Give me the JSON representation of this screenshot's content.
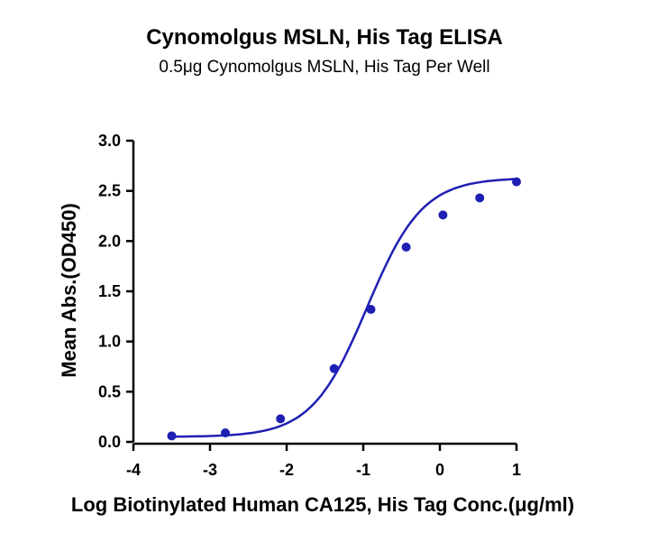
{
  "chart_data": {
    "type": "scatter",
    "title": "Cynomolgus MSLN, His Tag ELISA",
    "subtitle": "0.5μg Cynomolgus MSLN, His Tag Per Well",
    "xlabel": "Log Biotinylated Human CA125, His Tag Conc.(μg/ml)",
    "ylabel": "Mean Abs.(OD450)",
    "xlim": [
      -4,
      1
    ],
    "ylim": [
      0,
      3
    ],
    "xticks": [
      -4,
      -3,
      -2,
      -1,
      0,
      1
    ],
    "yticks": [
      "0.0",
      "0.5",
      "1.0",
      "1.5",
      "2.0",
      "2.5",
      "3.0"
    ],
    "grid": false,
    "series": [
      {
        "x": [
          -3.5,
          -2.8,
          -2.08,
          -1.38,
          -0.9,
          -0.44,
          0.04,
          0.52,
          1.0
        ],
        "y": [
          0.06,
          0.09,
          0.23,
          0.73,
          1.32,
          1.94,
          2.26,
          2.43,
          2.59
        ],
        "color": "#1f1fb4",
        "fit": "4PL"
      }
    ],
    "fit_params": {
      "bottom": 0.05,
      "top": 2.63,
      "logEC50": -0.95,
      "hill": 1.2,
      "xrange": [
        -3.5,
        1.0
      ]
    }
  }
}
